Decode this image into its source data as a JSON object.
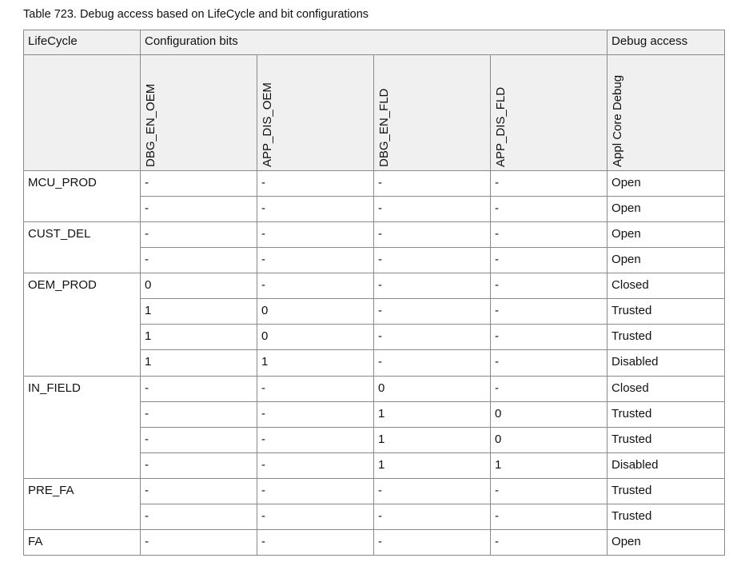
{
  "title": "Table 723.  Debug access based on LifeCycle and bit configurations",
  "headers": {
    "lifecycle": "LifeCycle",
    "config_bits": "Configuration bits",
    "debug_access": "Debug access",
    "columns": [
      "DBG_EN_OEM",
      "APP_DIS_OEM",
      "DBG_EN_FLD",
      "APP_DIS_FLD",
      "Appl Core Debug"
    ]
  },
  "groups": [
    {
      "lifecycle": "MCU_PROD",
      "rows": [
        [
          "-",
          "-",
          "-",
          "-",
          "Open"
        ],
        [
          "-",
          "-",
          "-",
          "-",
          "Open"
        ]
      ]
    },
    {
      "lifecycle": "CUST_DEL",
      "rows": [
        [
          "-",
          "-",
          "-",
          "-",
          "Open"
        ],
        [
          "-",
          "-",
          "-",
          "-",
          "Open"
        ]
      ]
    },
    {
      "lifecycle": "OEM_PROD",
      "rows": [
        [
          "0",
          "-",
          "-",
          "-",
          "Closed"
        ],
        [
          "1",
          "0",
          "-",
          "-",
          "Trusted"
        ],
        [
          "1",
          "0",
          "-",
          "-",
          "Trusted"
        ],
        [
          "1",
          "1",
          "-",
          "-",
          "Disabled"
        ]
      ]
    },
    {
      "lifecycle": "IN_FIELD",
      "rows": [
        [
          "-",
          "-",
          "0",
          "-",
          "Closed"
        ],
        [
          "-",
          "-",
          "1",
          "0",
          "Trusted"
        ],
        [
          "-",
          "-",
          "1",
          "0",
          "Trusted"
        ],
        [
          "-",
          "-",
          "1",
          "1",
          "Disabled"
        ]
      ]
    },
    {
      "lifecycle": "PRE_FA",
      "rows": [
        [
          "-",
          "-",
          "-",
          "-",
          "Trusted"
        ],
        [
          "-",
          "-",
          "-",
          "-",
          "Trusted"
        ]
      ]
    },
    {
      "lifecycle": "FA",
      "rows": [
        [
          "-",
          "-",
          "-",
          "-",
          "Open"
        ]
      ]
    }
  ]
}
